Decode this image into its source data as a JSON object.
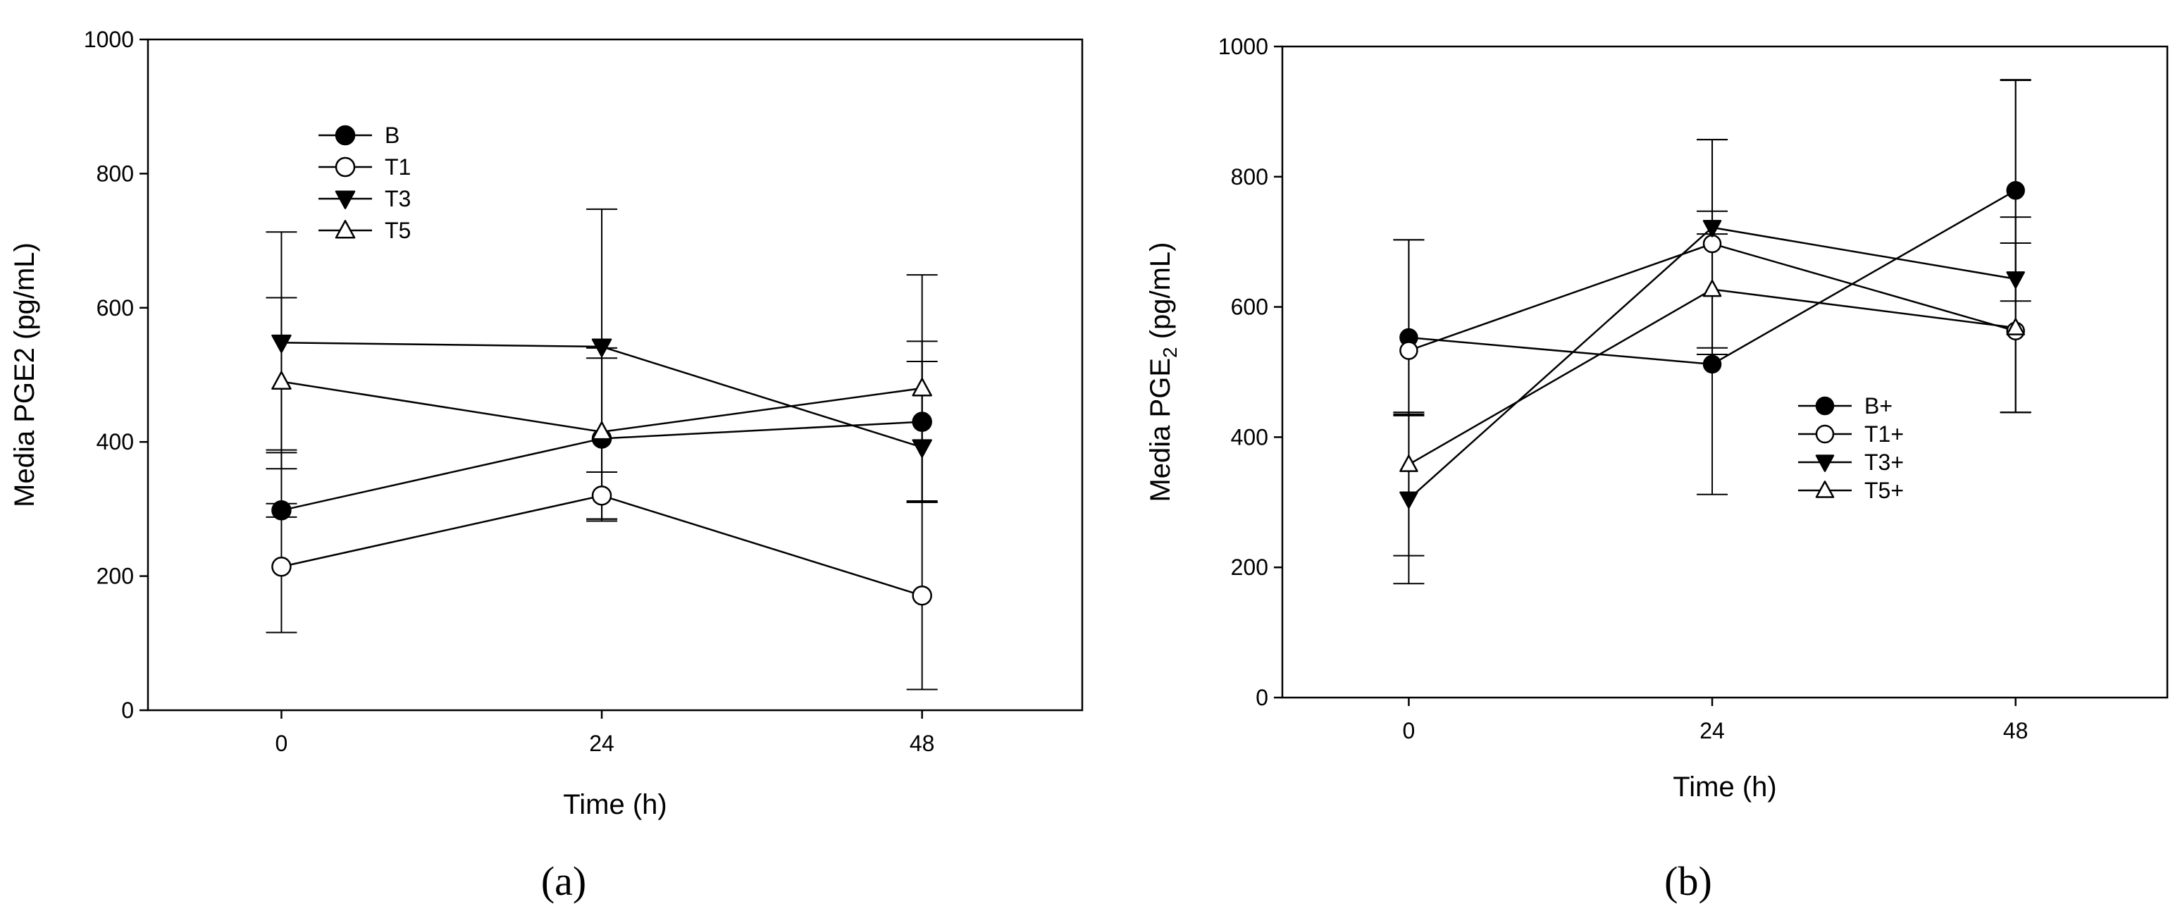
{
  "chart_data": [
    {
      "panel_label": "(a)",
      "type": "line",
      "x": [
        0,
        24,
        48
      ],
      "xlabel": "Time (h)",
      "ylabel": "Media PGE2 (pg/mL)",
      "ylabel_sub": "",
      "xlim": [
        -10,
        60
      ],
      "ylim": [
        0,
        1000
      ],
      "yticks": [
        0,
        200,
        400,
        600,
        800,
        1000
      ],
      "xticks": [
        0,
        24,
        48
      ],
      "legend": "top-left",
      "grid": false,
      "series": [
        {
          "name": "B",
          "marker": "circle-filled",
          "values": [
            298,
            405,
            430
          ],
          "err_low": [
            10,
            120,
            120
          ],
          "err_high": [
            10,
            120,
            120
          ]
        },
        {
          "name": "T1",
          "marker": "circle-open",
          "values": [
            214,
            320,
            171
          ],
          "err_low": [
            98,
            35,
            140
          ],
          "err_high": [
            170,
            35,
            140
          ]
        },
        {
          "name": "T3",
          "marker": "triangle-down-filled",
          "values": [
            548,
            542,
            392
          ],
          "err_low": [
            160,
            260,
            80
          ],
          "err_high": [
            165,
            205,
            257
          ]
        },
        {
          "name": "T5",
          "marker": "triangle-up-open",
          "values": [
            490,
            415,
            480
          ],
          "err_low": [
            130,
            130,
            170
          ],
          "err_high": [
            125,
            125,
            40
          ]
        }
      ]
    },
    {
      "panel_label": "(b)",
      "type": "line",
      "x": [
        0,
        24,
        48
      ],
      "xlabel": "Time (h)",
      "ylabel": "Media PGE",
      "ylabel_sub": "2",
      "ylabel_suffix": " (pg/mL)",
      "xlim": [
        -10,
        60
      ],
      "ylim": [
        0,
        1000
      ],
      "yticks": [
        0,
        200,
        400,
        600,
        800,
        1000
      ],
      "xticks": [
        0,
        24,
        48
      ],
      "legend": "center-right",
      "grid": false,
      "series": [
        {
          "name": "B+",
          "marker": "circle-filled",
          "values": [
            553,
            512,
            779
          ],
          "err_low": [
            120,
            200,
            170
          ],
          "err_high": [
            150,
            200,
            170
          ]
        },
        {
          "name": "T1+",
          "marker": "circle-open",
          "values": [
            533,
            697,
            563
          ],
          "err_low": [
            95,
            160,
            125
          ],
          "err_high": [
            170,
            160,
            175
          ]
        },
        {
          "name": "T3+",
          "marker": "triangle-down-filled",
          "values": [
            305,
            722,
            643
          ],
          "err_low": [
            130,
            195,
            205
          ],
          "err_high": [
            130,
            135,
            305
          ]
        },
        {
          "name": "T5+",
          "marker": "triangle-up-open",
          "values": [
            358,
            627,
            568
          ],
          "err_low": [
            140,
            100,
            130
          ],
          "err_high": [
            80,
            120,
            130
          ]
        }
      ]
    }
  ]
}
